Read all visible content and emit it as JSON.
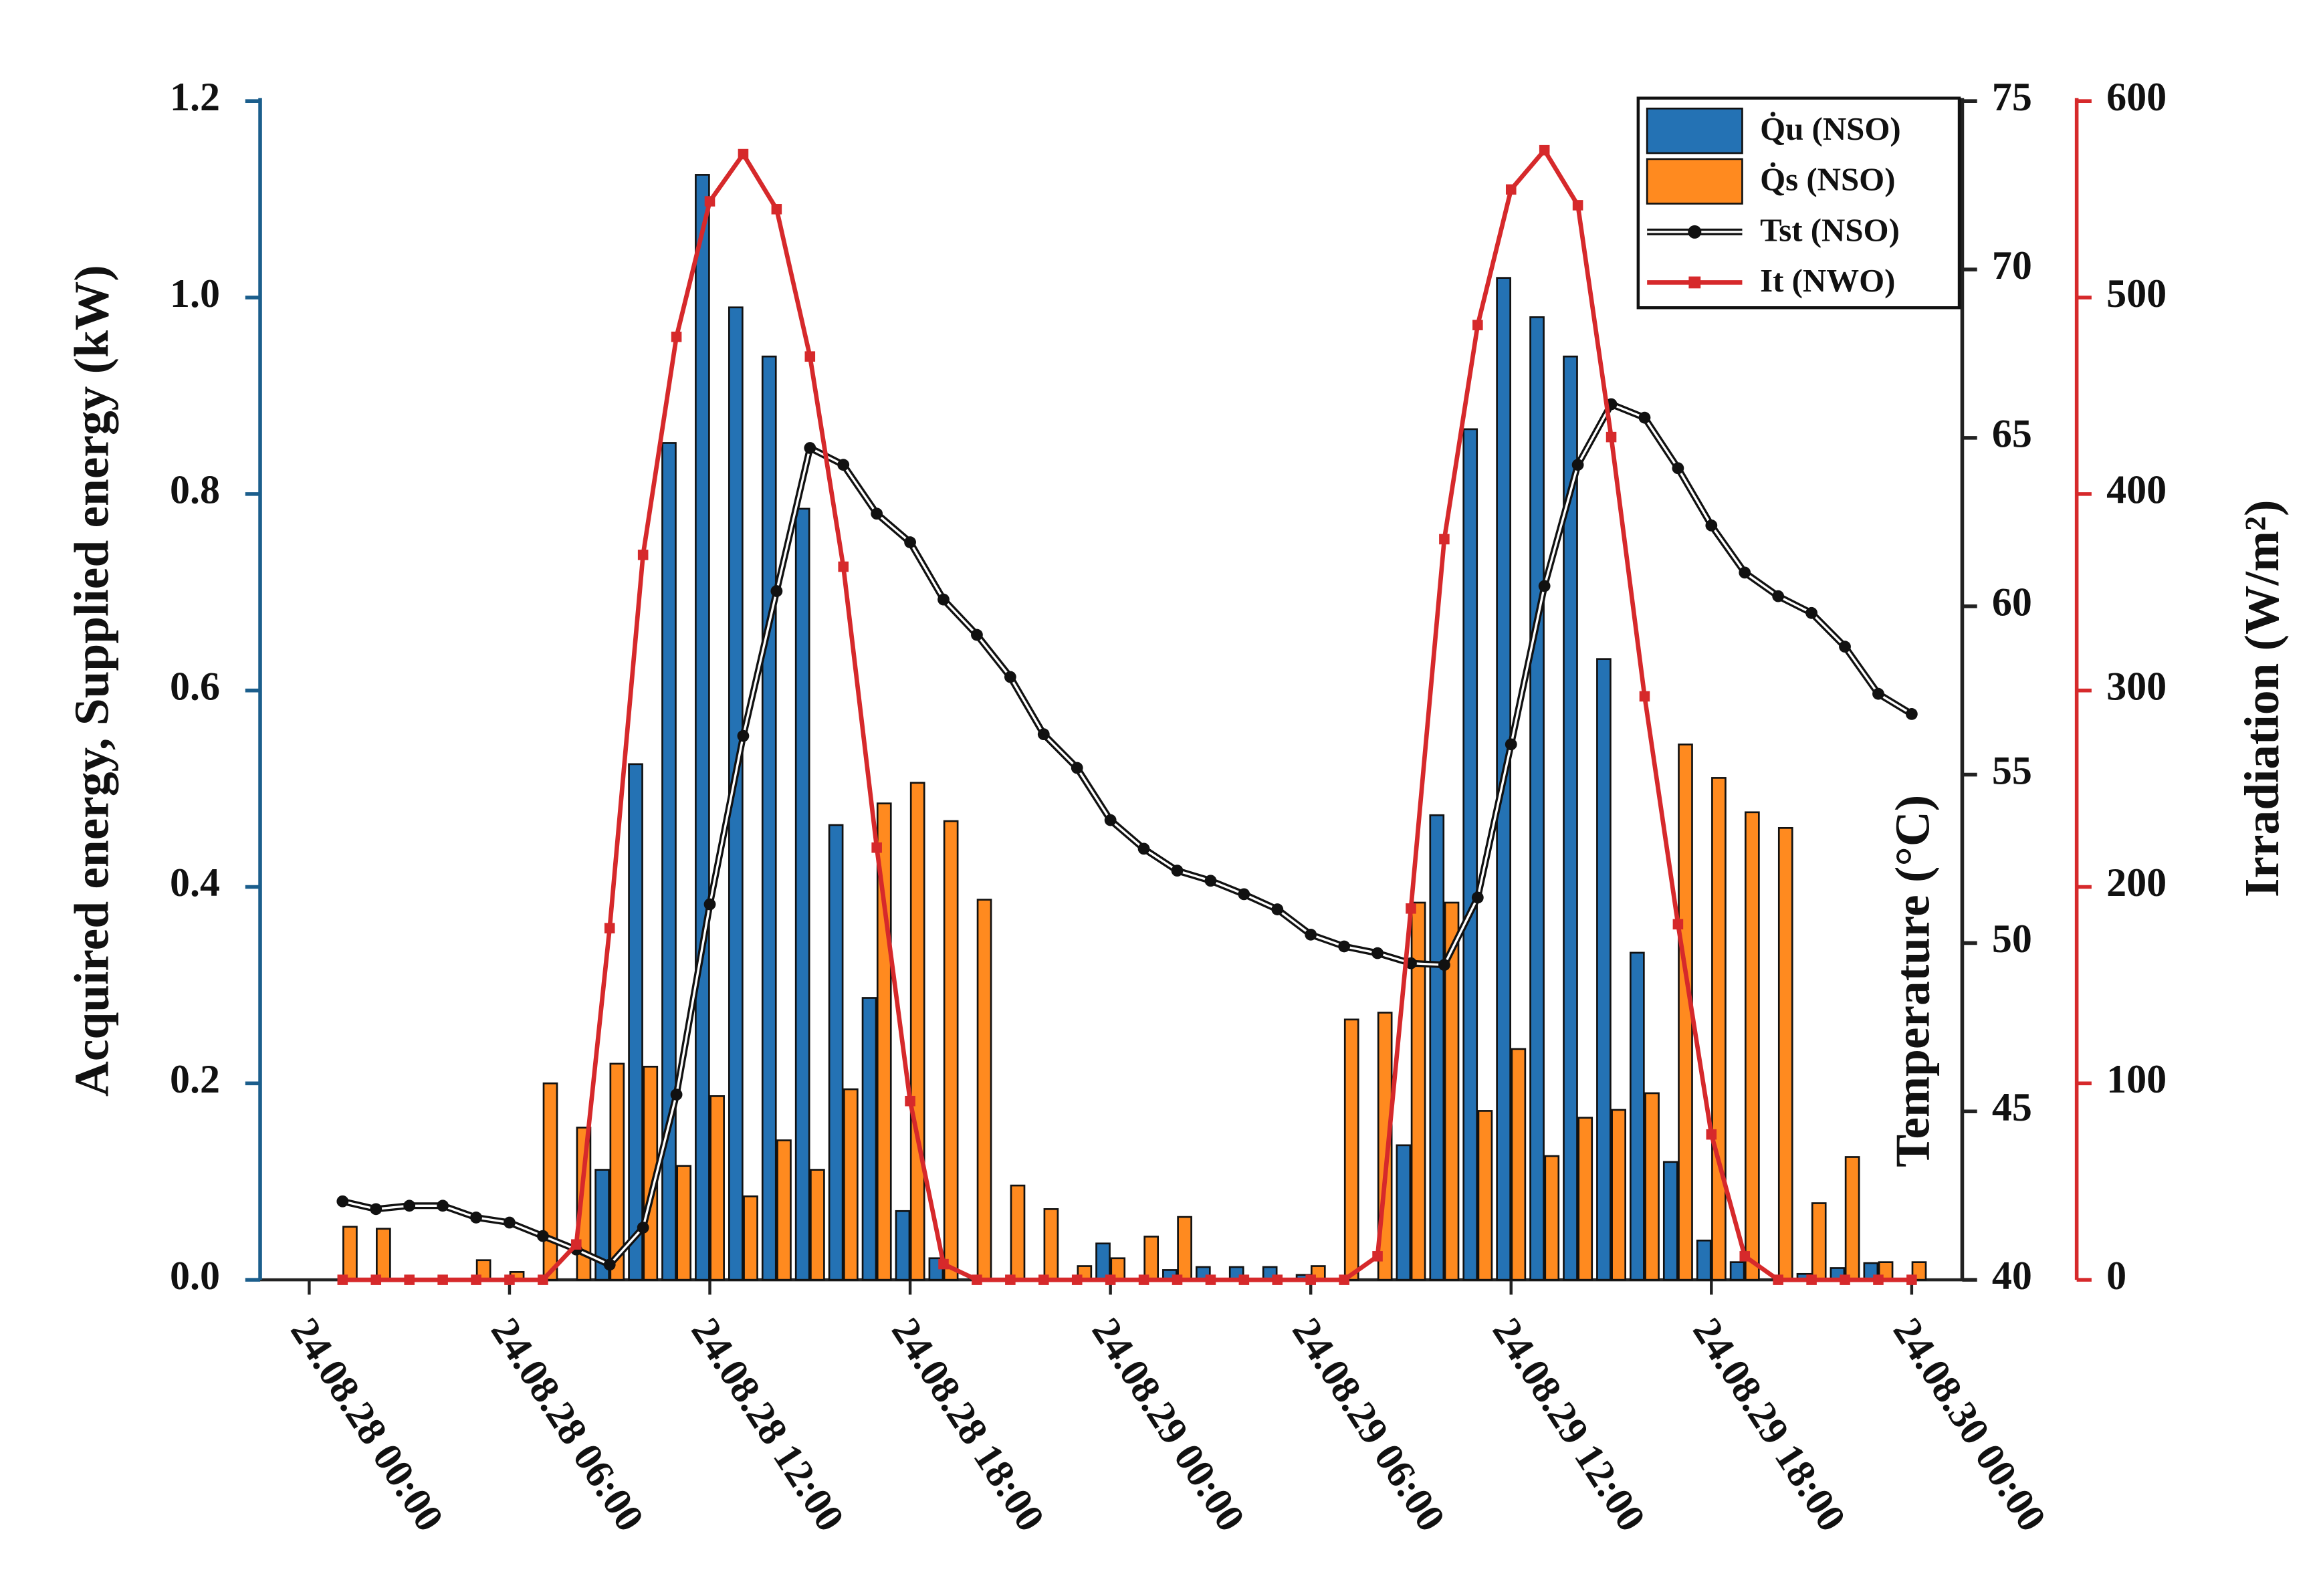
{
  "chart_data": {
    "type": "bar",
    "y_label": "Acquired energy, Supplied energy (kW)",
    "y2_label": "Temperature (°C)",
    "y3_label": "Irradiation (W/m²)",
    "x": [
      1,
      2,
      3,
      4,
      5,
      6,
      7,
      8,
      9,
      10,
      11,
      12,
      13,
      14,
      15,
      16,
      17,
      18,
      19,
      20,
      21,
      22,
      23,
      24,
      25,
      26,
      27,
      28,
      29,
      30,
      31,
      32,
      33,
      34,
      35,
      36,
      37,
      38,
      39,
      40,
      41,
      42,
      43,
      44,
      45,
      46,
      47,
      48
    ],
    "xlim": [
      0,
      48
    ],
    "xticks": [
      {
        "value": 0,
        "label": "24.08.28 00:00"
      },
      {
        "value": 6,
        "label": "24.08.28 06:00"
      },
      {
        "value": 12,
        "label": "24.08.28 12:00"
      },
      {
        "value": 18,
        "label": "24.08.28 18:00"
      },
      {
        "value": 24,
        "label": "24.08.29 00:00"
      },
      {
        "value": 30,
        "label": "24.08.29 06:00"
      },
      {
        "value": 36,
        "label": "24.08.29 12:00"
      },
      {
        "value": 42,
        "label": "24.08.29 18:00"
      },
      {
        "value": 48,
        "label": "24.08.30 00:00"
      }
    ],
    "ylim": [
      0,
      1.2
    ],
    "yticks": [
      {
        "value": 0,
        "label": "0.0"
      },
      0.2,
      0.4,
      0.6,
      0.8,
      {
        "value": 1,
        "label": "1.0"
      },
      1.2
    ],
    "y2lim": [
      40,
      75
    ],
    "y2ticks": [
      40,
      45,
      50,
      55,
      60,
      65,
      70,
      75
    ],
    "y3lim": [
      0,
      600
    ],
    "y3ticks": [
      0,
      100,
      200,
      300,
      400,
      500,
      600
    ],
    "series": [
      {
        "name": "Q̇u (NSO)",
        "type": "bar",
        "color": "#2472b4",
        "values": [
          0,
          0,
          0,
          0,
          0,
          0,
          0,
          0,
          0.112,
          0.525,
          0.852,
          1.125,
          0.99,
          0.94,
          0.785,
          0.463,
          0.287,
          0.07,
          0.022,
          0,
          0,
          0,
          0,
          0.037,
          0,
          0.01,
          0.013,
          0.013,
          0.013,
          0.005,
          0,
          0,
          0.137,
          0.473,
          0.866,
          1.02,
          0.98,
          0.94,
          0.632,
          0.333,
          0.12,
          0.04,
          0.018,
          0,
          0.006,
          0.012,
          0.017,
          0
        ]
      },
      {
        "name": "Q̇s (NSO)",
        "type": "bar",
        "color": "#ff8a1f",
        "values": [
          0.054,
          0.052,
          0,
          0,
          0.02,
          0.008,
          0.2,
          0.155,
          0.22,
          0.217,
          0.116,
          0.187,
          0.085,
          0.142,
          0.112,
          0.194,
          0.485,
          0.506,
          0.467,
          0.387,
          0.096,
          0.072,
          0.014,
          0.022,
          0.044,
          0.064,
          0,
          0,
          0,
          0.014,
          0.265,
          0.272,
          0.384,
          0.384,
          0.172,
          0.235,
          0.126,
          0.165,
          0.173,
          0.19,
          0.545,
          0.511,
          0.476,
          0.46,
          0.078,
          0.125,
          0.018,
          0.018
        ]
      },
      {
        "name": "Tst (NSO)",
        "type": "line",
        "axis": "y2",
        "color": "#111111",
        "values": [
          42.33,
          42.1,
          42.2,
          42.2,
          41.85,
          41.7,
          41.3,
          40.9,
          40.45,
          41.55,
          45.5,
          51.15,
          56.15,
          60.45,
          64.7,
          64.2,
          62.75,
          61.9,
          60.2,
          59.15,
          57.9,
          56.2,
          55.2,
          53.65,
          52.8,
          52.15,
          51.85,
          51.45,
          51.0,
          50.25,
          49.9,
          49.7,
          49.4,
          49.35,
          51.35,
          55.9,
          60.6,
          64.2,
          66.0,
          65.6,
          64.1,
          62.4,
          61.0,
          60.3,
          59.8,
          58.8,
          57.4,
          56.8
        ]
      },
      {
        "name": "It (NWO)",
        "type": "line",
        "axis": "y3",
        "color": "#d6292b",
        "values": [
          0,
          0,
          0,
          0,
          0,
          0,
          0,
          18,
          179,
          369,
          480,
          549,
          573,
          545,
          470,
          363,
          220,
          91,
          8,
          0,
          0,
          0,
          0,
          0,
          0,
          0,
          0,
          0,
          0,
          0,
          0,
          12,
          189,
          377,
          486,
          555,
          575,
          547,
          429,
          297,
          181,
          74,
          12,
          0,
          0,
          0,
          0,
          0
        ]
      }
    ]
  }
}
